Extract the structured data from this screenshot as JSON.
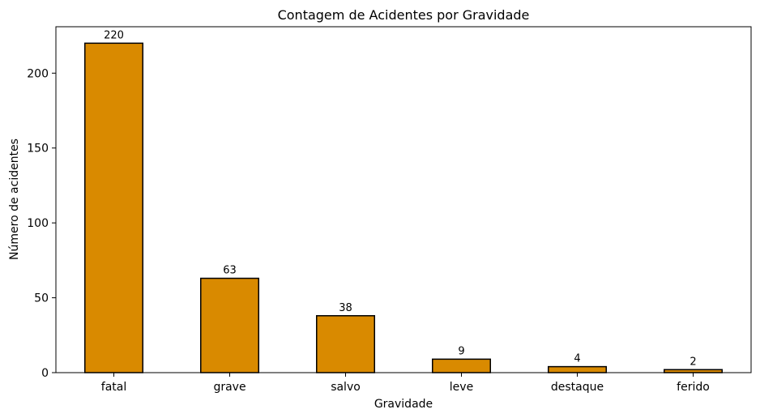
{
  "chart_data": {
    "type": "bar",
    "title": "Contagem de Acidentes por Gravidade",
    "xlabel": "Gravidade",
    "ylabel": "Número de acidentes",
    "categories": [
      "fatal",
      "grave",
      "salvo",
      "leve",
      "destaque",
      "ferido"
    ],
    "values": [
      220,
      63,
      38,
      9,
      4,
      2
    ],
    "data_labels": [
      "220",
      "63",
      "38",
      "9",
      "4",
      "2"
    ],
    "ylim": [
      0,
      231
    ],
    "yticks": [
      0,
      50,
      100,
      150,
      200
    ],
    "grid": false,
    "legend": "none",
    "colors": {
      "bar_fill": "#d98a00",
      "bar_edge": "#000000",
      "axis": "#000000",
      "background": "#ffffff"
    }
  }
}
